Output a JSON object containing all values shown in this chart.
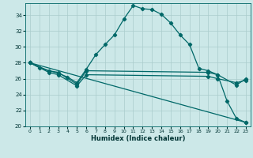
{
  "xlabel": "Humidex (Indice chaleur)",
  "background_color": "#cce8e8",
  "grid_color": "#aacccc",
  "line_color": "#006868",
  "xlim": [
    -0.5,
    23.5
  ],
  "ylim": [
    20,
    35.5
  ],
  "yticks": [
    20,
    22,
    24,
    26,
    28,
    30,
    32,
    34
  ],
  "xticks": [
    0,
    1,
    2,
    3,
    4,
    5,
    6,
    7,
    8,
    9,
    10,
    11,
    12,
    13,
    14,
    15,
    16,
    17,
    18,
    19,
    20,
    21,
    22,
    23
  ],
  "series0": {
    "x": [
      0,
      1,
      2,
      3,
      4,
      5,
      6,
      7,
      8,
      9,
      10,
      11,
      12,
      13,
      14,
      15,
      16,
      17,
      18,
      19,
      20,
      21,
      22,
      23
    ],
    "y": [
      28,
      27.4,
      27.0,
      26.7,
      26.2,
      25.5,
      27.2,
      29.0,
      30.3,
      31.5,
      33.5,
      35.2,
      34.8,
      34.7,
      34.1,
      33.0,
      31.5,
      30.3,
      27.3,
      27.0,
      26.5,
      23.2,
      21.0,
      20.5
    ]
  },
  "series1": {
    "x": [
      0,
      2,
      3,
      5,
      6,
      19,
      20,
      22,
      23
    ],
    "y": [
      28,
      27.0,
      26.8,
      25.3,
      27.0,
      26.8,
      26.5,
      25.2,
      26.0
    ]
  },
  "series2": {
    "x": [
      0,
      2,
      3,
      5,
      6,
      19,
      20,
      22,
      23
    ],
    "y": [
      28,
      26.8,
      26.5,
      25.1,
      26.5,
      26.3,
      26.0,
      25.5,
      25.8
    ]
  },
  "series3": {
    "x": [
      0,
      23
    ],
    "y": [
      28,
      20.5
    ]
  }
}
